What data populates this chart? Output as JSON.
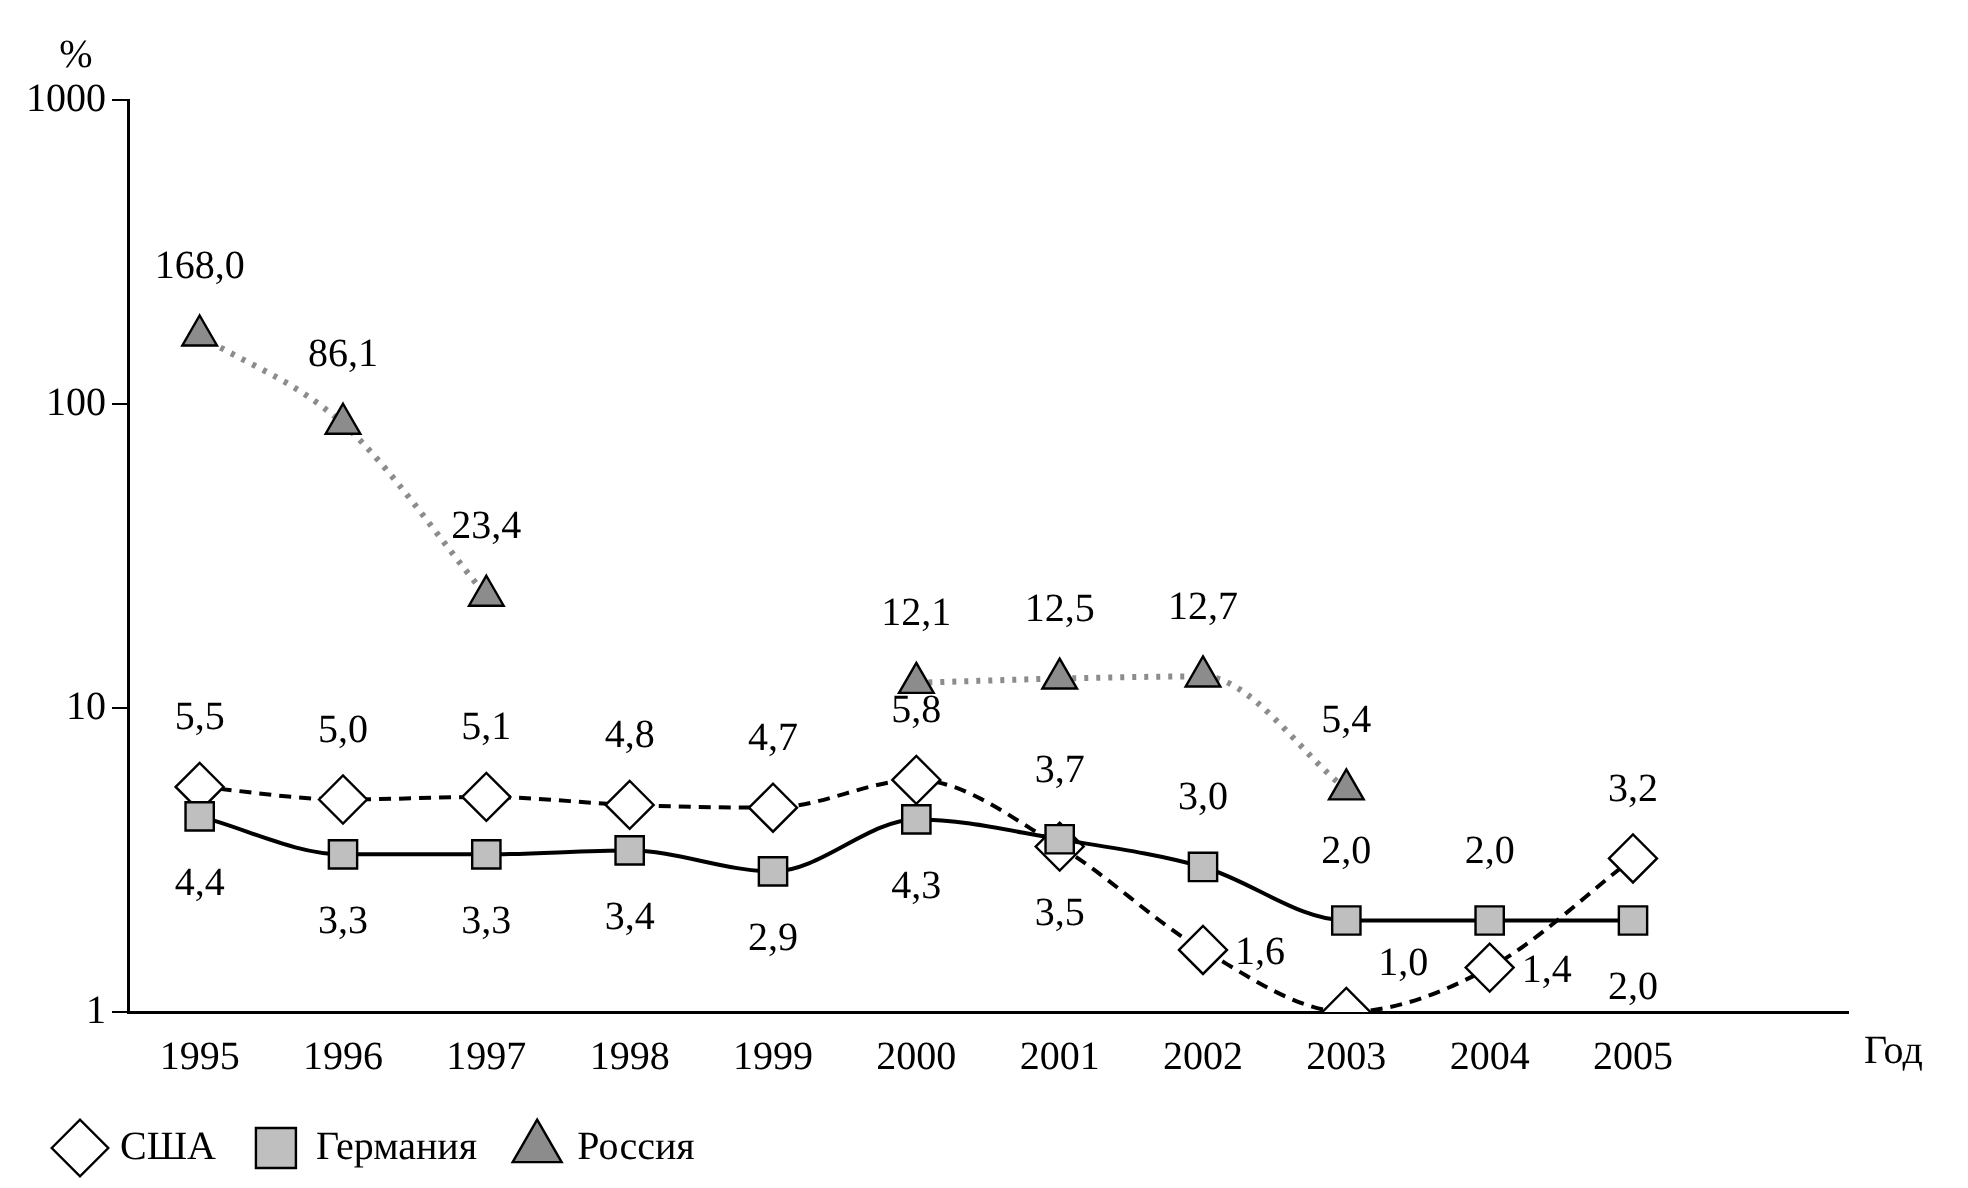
{
  "chart_data": {
    "type": "line",
    "ylabel": "%",
    "xlabel": "Год",
    "categories": [
      "1995",
      "1996",
      "1997",
      "1998",
      "1999",
      "2000",
      "2001",
      "2002",
      "2003",
      "2004",
      "2005"
    ],
    "log": "y",
    "ylim": [
      1,
      1000
    ],
    "yticks": [
      1,
      10,
      100,
      1000
    ],
    "grid": false,
    "legend": "bottom left",
    "series": [
      {
        "name": "США",
        "color": "#ffffff",
        "marker": "diamond",
        "line_style": "dashed",
        "values": [
          5.5,
          5.0,
          5.1,
          4.8,
          4.7,
          5.8,
          3.5,
          1.6,
          1.0,
          1.4,
          3.2
        ],
        "value_labels": [
          "5,5",
          "5,0",
          "5,1",
          "4,8",
          "4,7",
          "5,8",
          "3,5",
          "1,6",
          "1,0",
          "1,4",
          "3,2"
        ]
      },
      {
        "name": "Германия",
        "color": "#bfbfbf",
        "marker": "square",
        "line_style": "solid",
        "values": [
          4.4,
          3.3,
          3.3,
          3.4,
          2.9,
          4.3,
          3.7,
          3.0,
          2.0,
          2.0,
          2.0
        ],
        "value_labels": [
          "4,4",
          "3,3",
          "3,3",
          "3,4",
          "2,9",
          "4,3",
          "3,7",
          "3,0",
          "2,0",
          "2,0",
          "2,0"
        ]
      },
      {
        "name": "Россия",
        "color": "#8c8c8c",
        "marker": "triangle",
        "line_style": "dotted",
        "values": [
          168.0,
          86.1,
          23.4,
          null,
          null,
          12.1,
          12.5,
          12.7,
          5.4,
          null,
          null
        ],
        "value_labels": [
          "168,0",
          "86,1",
          "23,4",
          null,
          null,
          "12,1",
          "12,5",
          "12,7",
          "5,4",
          null,
          null
        ]
      }
    ]
  }
}
